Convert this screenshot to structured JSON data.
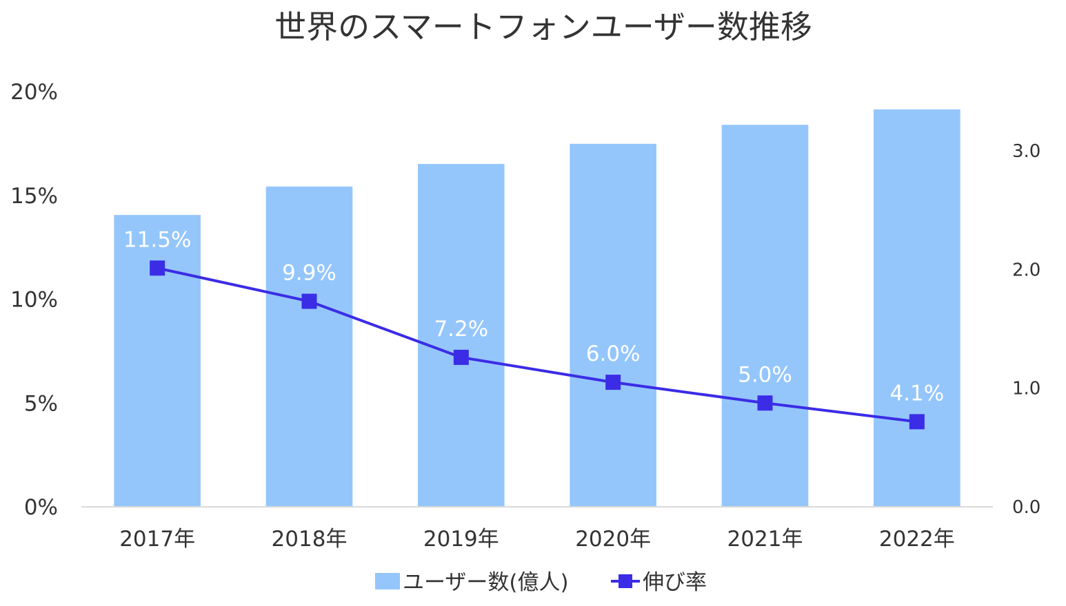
{
  "chart_data": {
    "type": "bar+line",
    "title": "世界のスマートフォンユーザー数推移",
    "categories": [
      "2017年",
      "2018年",
      "2019年",
      "2020年",
      "2021年",
      "2022年"
    ],
    "left_axis": {
      "ticks": [
        "0%",
        "5%",
        "10%",
        "15%",
        "20%"
      ],
      "range": [
        0,
        20
      ]
    },
    "right_axis": {
      "ticks": [
        "0.0",
        "1.0",
        "2.0",
        "3.0"
      ],
      "range": [
        0,
        3.5
      ]
    },
    "series": [
      {
        "name": "ユーザー数(億人)",
        "type": "bar",
        "axis": "right",
        "color": "#94c6fc",
        "values": [
          2.46,
          2.7,
          2.89,
          3.06,
          3.22,
          3.35
        ]
      },
      {
        "name": "伸び率",
        "type": "line",
        "axis": "left",
        "color": "#3b2ce6",
        "values": [
          11.5,
          9.9,
          7.2,
          6.0,
          5.0,
          4.1
        ],
        "labels": [
          "11.5%",
          "9.9%",
          "7.2%",
          "6.0%",
          "5.0%",
          "4.1%"
        ]
      }
    ],
    "grid": false,
    "legend_position": "bottom"
  }
}
